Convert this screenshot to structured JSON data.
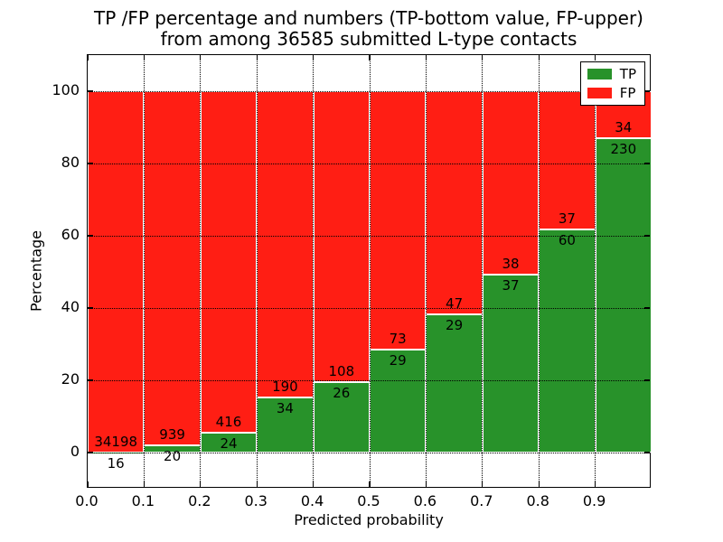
{
  "chart_data": {
    "type": "bar",
    "stacked": true,
    "normalized": "percent",
    "title_lines": [
      "TP /FP percentage and numbers (TP-bottom value, FP-upper)",
      "from among 36585 submitted L-type contacts"
    ],
    "total_submitted": 36585,
    "xlabel": "Predicted probability",
    "ylabel": "Percentage",
    "bin_edges": [
      0.0,
      0.1,
      0.2,
      0.3,
      0.4,
      0.5,
      0.6,
      0.7,
      0.8,
      0.9,
      1.0
    ],
    "series": [
      {
        "name": "TP",
        "color": "#28922a",
        "values": [
          16,
          20,
          24,
          34,
          26,
          29,
          29,
          37,
          60,
          230
        ]
      },
      {
        "name": "FP",
        "color": "#ff1e14",
        "values": [
          34198,
          939,
          416,
          190,
          108,
          73,
          47,
          38,
          37,
          34
        ]
      }
    ],
    "tp_percent_per_bin": [
      0.05,
      2.09,
      5.45,
      15.18,
      19.4,
      28.43,
      38.16,
      49.33,
      61.86,
      87.12
    ],
    "bar_edge_color": "#ffffff",
    "xtick_labels": [
      "0.0",
      "0.1",
      "0.2",
      "0.3",
      "0.4",
      "0.5",
      "0.6",
      "0.7",
      "0.8",
      "0.9"
    ],
    "ytick_values": [
      0,
      20,
      40,
      60,
      80,
      100
    ],
    "xlim": [
      0.0,
      1.0
    ],
    "ylim": [
      -10,
      110
    ],
    "grid": true,
    "grid_style": "dotted",
    "legend": {
      "position": "upper right",
      "entries": [
        {
          "label": "TP",
          "color": "#28922a"
        },
        {
          "label": "FP",
          "color": "#ff1e14"
        }
      ]
    }
  }
}
